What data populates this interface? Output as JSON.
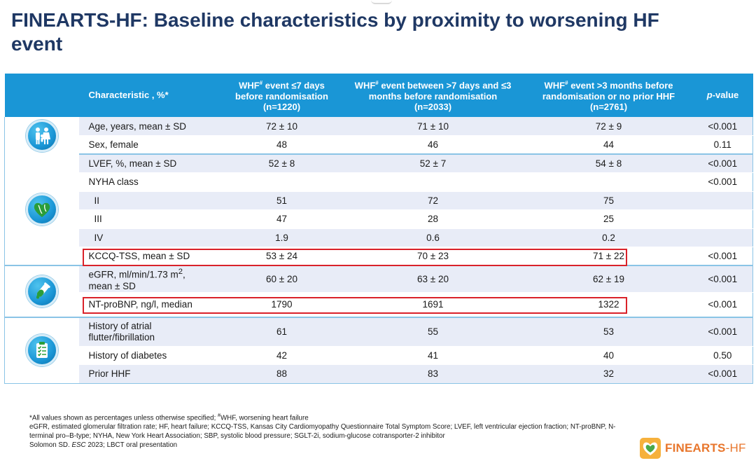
{
  "title": "FINEARTS-HF: Baseline characteristics by proximity to worsening HF event",
  "table": {
    "headers": {
      "characteristic": "Characteristic , %*",
      "col1_a": "WHF",
      "col1_sup": "#",
      "col1_b": " event ≤7 days before randomisation",
      "col1_n": "(n=1220)",
      "col2_a": "WHF",
      "col2_sup": "#",
      "col2_b": " event between >7 days and ≤3 months before randomisation",
      "col2_n": "(n=2033)",
      "col3_a": "WHF",
      "col3_sup": "#",
      "col3_b": " event >3 months before randomisation or no prior HHF",
      "col3_n": "(n=2761)",
      "pvalue_italic": "p",
      "pvalue_rest": "-value"
    },
    "groups": [
      {
        "icon": "family-icon",
        "rows": [
          {
            "label": "Age, years, mean ± SD",
            "c1": "72 ± 10",
            "c2": "71 ± 10",
            "c3": "72 ± 9",
            "p": "<0.001"
          },
          {
            "label": "Sex, female",
            "c1": "48",
            "c2": "46",
            "c3": "44",
            "p": "0.11"
          }
        ]
      },
      {
        "icon": "heart-icon",
        "rows": [
          {
            "label": "LVEF, %, mean ± SD",
            "c1": "52 ± 8",
            "c2": "52 ± 7",
            "c3": "54 ± 8",
            "p": "<0.001"
          },
          {
            "label": "NYHA class",
            "c1": "",
            "c2": "",
            "c3": "",
            "p": "<0.001"
          },
          {
            "label": "II",
            "c1": "51",
            "c2": "72",
            "c3": "75",
            "p": ""
          },
          {
            "label": "III",
            "c1": "47",
            "c2": "28",
            "c3": "25",
            "p": ""
          },
          {
            "label": "IV",
            "c1": "1.9",
            "c2": "0.6",
            "c3": "0.2",
            "p": ""
          },
          {
            "label": "KCCQ-TSS, mean ± SD",
            "c1": "53 ± 24",
            "c2": "70 ± 23",
            "c3": "71 ± 22",
            "p": "<0.001"
          }
        ]
      },
      {
        "icon": "test-tube-icon",
        "rows": [
          {
            "label_a": "eGFR, ml/min/1.73 m",
            "label_sup": "2",
            "label_b": ",",
            "label_c": "mean ± SD",
            "c1": "60 ± 20",
            "c2": "63 ± 20",
            "c3": "62 ± 19",
            "p": "<0.001"
          },
          {
            "label": "NT-proBNP, ng/l, median",
            "c1": "1790",
            "c2": "1691",
            "c3": "1322",
            "p": "<0.001"
          }
        ]
      },
      {
        "icon": "clipboard-icon",
        "rows": [
          {
            "label_a": "History of atrial",
            "label_b": "flutter/fibrillation",
            "c1": "61",
            "c2": "55",
            "c3": "53",
            "p": "<0.001"
          },
          {
            "label": "History of diabetes",
            "c1": "42",
            "c2": "41",
            "c3": "40",
            "p": "0.50"
          },
          {
            "label": "Prior HHF",
            "c1": "88",
            "c2": "83",
            "c3": "32",
            "p": "<0.001"
          }
        ]
      }
    ]
  },
  "footnote": {
    "line1_a": "*All values shown as percentages unless otherwise specified; ",
    "line1_sup": "#",
    "line1_b": "WHF, worsening heart failure",
    "line2": "eGFR, estimated glomerular filtration rate; HF, heart failure; KCCQ-TSS, Kansas City Cardiomyopathy Questionnaire Total Symptom Score; LVEF, left ventricular ejection fraction; NT-proBNP, N-terminal pro–B-type; NYHA, New York Heart Association; SBP, systolic blood pressure; SGLT-2i, sodium-glucose cotransporter-2 inhibitor",
    "line3_a": "Solomon SD. ",
    "line3_italic": "ESC",
    "line3_b": " 2023; LBCT oral presentation"
  },
  "logo": {
    "text_a": "FINEARTS",
    "text_b": "-HF",
    "icon": "heart-logo-icon"
  },
  "colors": {
    "header_blue": "#1a96d6",
    "title_navy": "#1f3864",
    "highlight_red": "#d9222a",
    "logo_orange": "#e8762c",
    "row_shade": "#e8ecf7"
  }
}
